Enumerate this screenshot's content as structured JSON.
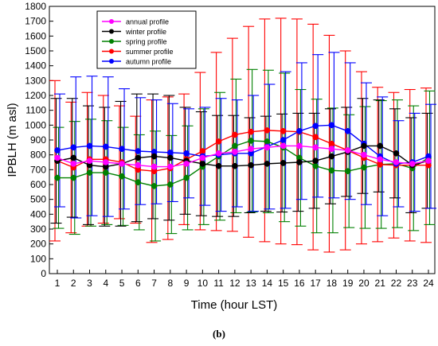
{
  "caption": "(b)",
  "chart_data": {
    "type": "line",
    "xlabel": "Time (hour LST)",
    "ylabel": "IPBLH (m asl)",
    "xlim": [
      1,
      24
    ],
    "ylim": [
      0,
      1800
    ],
    "x_ticks": [
      1,
      2,
      3,
      4,
      5,
      6,
      7,
      8,
      9,
      10,
      11,
      12,
      13,
      14,
      15,
      16,
      17,
      18,
      19,
      20,
      21,
      22,
      23,
      24
    ],
    "y_ticks": [
      0,
      100,
      200,
      300,
      400,
      500,
      600,
      700,
      800,
      900,
      1000,
      1100,
      1200,
      1300,
      1400,
      1500,
      1600,
      1700,
      1800
    ],
    "grid": false,
    "legend_position": "top-left",
    "x": [
      1,
      2,
      3,
      4,
      5,
      6,
      7,
      8,
      9,
      10,
      11,
      12,
      13,
      14,
      15,
      16,
      17,
      18,
      19,
      20,
      21,
      22,
      23,
      24
    ],
    "series": [
      {
        "name": "annual profile",
        "color": "#ff00ff",
        "values": [
          780,
          740,
          760,
          750,
          740,
          730,
          720,
          720,
          740,
          780,
          810,
          820,
          840,
          850,
          860,
          860,
          850,
          840,
          830,
          800,
          770,
          750,
          740,
          760
        ],
        "err": [
          0,
          0,
          0,
          0,
          0,
          0,
          0,
          0,
          0,
          0,
          0,
          0,
          0,
          0,
          0,
          0,
          0,
          0,
          0,
          0,
          0,
          0,
          0,
          0
        ]
      },
      {
        "name": "winter profile",
        "color": "#000000",
        "values": [
          760,
          780,
          730,
          720,
          740,
          780,
          790,
          780,
          760,
          740,
          725,
          725,
          730,
          740,
          745,
          750,
          760,
          790,
          820,
          860,
          860,
          810,
          730,
          760
        ],
        "err": [
          420,
          400,
          400,
          400,
          420,
          430,
          420,
          420,
          360,
          350,
          340,
          340,
          320,
          320,
          330,
          330,
          320,
          320,
          300,
          320,
          310,
          300,
          320,
          320
        ]
      },
      {
        "name": "spring profile",
        "color": "#008000",
        "values": [
          645,
          645,
          680,
          680,
          655,
          615,
          590,
          600,
          645,
          720,
          790,
          860,
          895,
          890,
          850,
          780,
          725,
          695,
          690,
          715,
          735,
          740,
          710,
          780
        ],
        "err": [
          340,
          380,
          360,
          350,
          330,
          320,
          370,
          330,
          350,
          390,
          430,
          450,
          480,
          480,
          500,
          460,
          450,
          420,
          380,
          410,
          430,
          430,
          420,
          450
        ]
      },
      {
        "name": "summer profile",
        "color": "#ff0000",
        "values": [
          760,
          715,
          770,
          770,
          750,
          700,
          690,
          710,
          770,
          825,
          890,
          935,
          955,
          965,
          960,
          955,
          920,
          875,
          830,
          780,
          735,
          730,
          730,
          730
        ],
        "err": [
          540,
          440,
          450,
          430,
          380,
          360,
          480,
          480,
          440,
          530,
          600,
          650,
          710,
          750,
          760,
          760,
          760,
          730,
          670,
          580,
          520,
          490,
          510,
          520
        ]
      },
      {
        "name": "autumn profile",
        "color": "#0000ff",
        "values": [
          830,
          850,
          860,
          855,
          840,
          825,
          820,
          815,
          810,
          790,
          800,
          810,
          810,
          855,
          900,
          960,
          995,
          1000,
          960,
          875,
          790,
          740,
          750,
          790
        ],
        "err": [
          380,
          475,
          470,
          470,
          405,
          360,
          350,
          330,
          300,
          330,
          380,
          360,
          390,
          420,
          460,
          460,
          480,
          490,
          460,
          410,
          400,
          290,
          330,
          350
        ]
      }
    ]
  }
}
